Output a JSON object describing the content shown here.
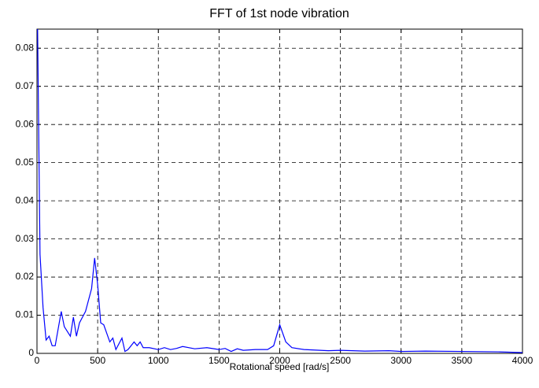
{
  "chart_data": {
    "type": "line",
    "title": "FFT of 1st node vibration",
    "xlabel": "Rotational speed [rad/s]",
    "xlim": [
      0,
      4000
    ],
    "xticks": [
      0,
      500,
      1000,
      1500,
      2000,
      2500,
      3000,
      3500,
      4000
    ],
    "ylim": [
      0,
      0.085
    ],
    "yticks": [
      0,
      0.01,
      0.02,
      0.03,
      0.04,
      0.05,
      0.06,
      0.07,
      0.08
    ],
    "grid": true,
    "series": [
      {
        "color": "#0000ff",
        "x": [
          0,
          25,
          50,
          75,
          100,
          125,
          150,
          200,
          225,
          275,
          300,
          325,
          350,
          400,
          450,
          475,
          500,
          525,
          550,
          600,
          625,
          650,
          700,
          725,
          750,
          800,
          825,
          850,
          875,
          925,
          1000,
          1050,
          1100,
          1150,
          1200,
          1300,
          1400,
          1500,
          1550,
          1600,
          1650,
          1700,
          1800,
          1900,
          1950,
          2000,
          2050,
          2100,
          2200,
          2400,
          2500,
          2700,
          2900,
          3000,
          3200,
          3500,
          3800,
          4000
        ],
        "values": [
          0.1,
          0.026,
          0.012,
          0.0035,
          0.0045,
          0.002,
          0.002,
          0.011,
          0.007,
          0.0045,
          0.0095,
          0.0045,
          0.008,
          0.011,
          0.017,
          0.025,
          0.018,
          0.008,
          0.0075,
          0.003,
          0.004,
          0.001,
          0.004,
          0.0005,
          0.001,
          0.003,
          0.002,
          0.003,
          0.0015,
          0.0015,
          0.001,
          0.0015,
          0.001,
          0.0013,
          0.0018,
          0.0012,
          0.0015,
          0.001,
          0.0013,
          0.0005,
          0.0012,
          0.0008,
          0.001,
          0.001,
          0.002,
          0.0075,
          0.003,
          0.0015,
          0.001,
          0.0007,
          0.0008,
          0.0006,
          0.0007,
          0.0005,
          0.0006,
          0.0005,
          0.0004,
          0.0002
        ]
      }
    ]
  }
}
